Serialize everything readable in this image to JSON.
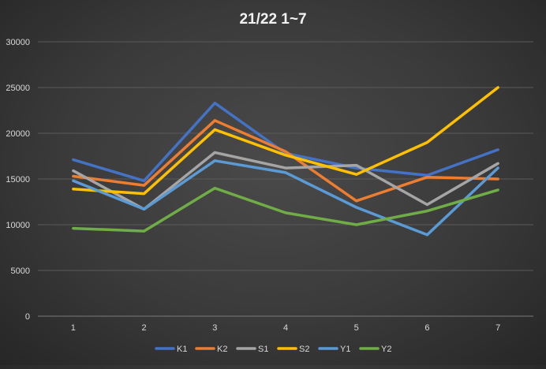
{
  "chart_data": {
    "type": "line",
    "title": "21/22 1~7",
    "xlabel": "",
    "ylabel": "",
    "categories": [
      "1",
      "2",
      "3",
      "4",
      "5",
      "6",
      "7"
    ],
    "ylim": [
      0,
      30000
    ],
    "yticks": [
      0,
      5000,
      10000,
      15000,
      20000,
      25000,
      30000
    ],
    "grid": true,
    "legend_position": "bottom",
    "series": [
      {
        "name": "K1",
        "color": "#4472c4",
        "values": [
          17100,
          14800,
          23300,
          17800,
          16200,
          15400,
          18200
        ]
      },
      {
        "name": "K2",
        "color": "#ed7d31",
        "values": [
          15300,
          14300,
          21400,
          18000,
          12600,
          15200,
          15000
        ]
      },
      {
        "name": "S1",
        "color": "#a5a5a5",
        "values": [
          15900,
          11700,
          17900,
          16200,
          16500,
          12200,
          16700
        ]
      },
      {
        "name": "S2",
        "color": "#ffc000",
        "values": [
          13900,
          13400,
          20400,
          17600,
          15500,
          19000,
          25000
        ]
      },
      {
        "name": "Y1",
        "color": "#5b9bd5",
        "values": [
          14800,
          11700,
          17000,
          15700,
          11900,
          8900,
          16200
        ]
      },
      {
        "name": "Y2",
        "color": "#70ad47",
        "values": [
          9600,
          9300,
          14000,
          11300,
          10000,
          11500,
          13800
        ]
      }
    ]
  }
}
